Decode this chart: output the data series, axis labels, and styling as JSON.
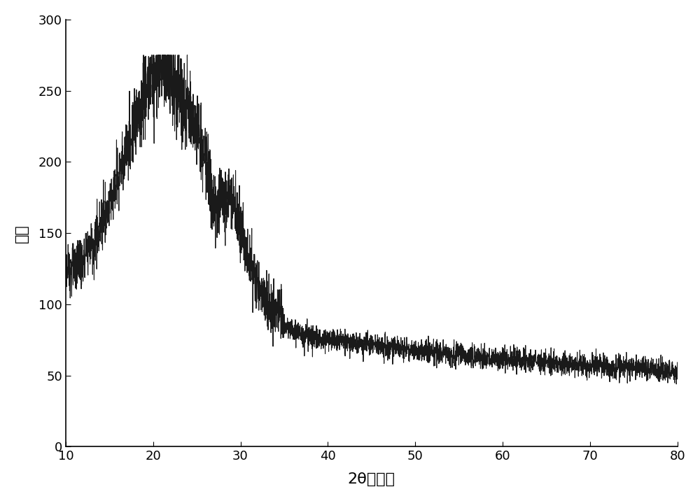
{
  "xlabel": "2θ（度）",
  "ylabel": "强度",
  "xlim": [
    10,
    80
  ],
  "ylim": [
    0,
    300
  ],
  "xticks": [
    10,
    20,
    30,
    40,
    50,
    60,
    70,
    80
  ],
  "yticks": [
    0,
    50,
    100,
    150,
    200,
    250,
    300
  ],
  "line_color": "#1a1a1a",
  "line_width": 0.8,
  "background_color": "#ffffff",
  "xlabel_fontsize": 16,
  "ylabel_fontsize": 16,
  "tick_fontsize": 13
}
